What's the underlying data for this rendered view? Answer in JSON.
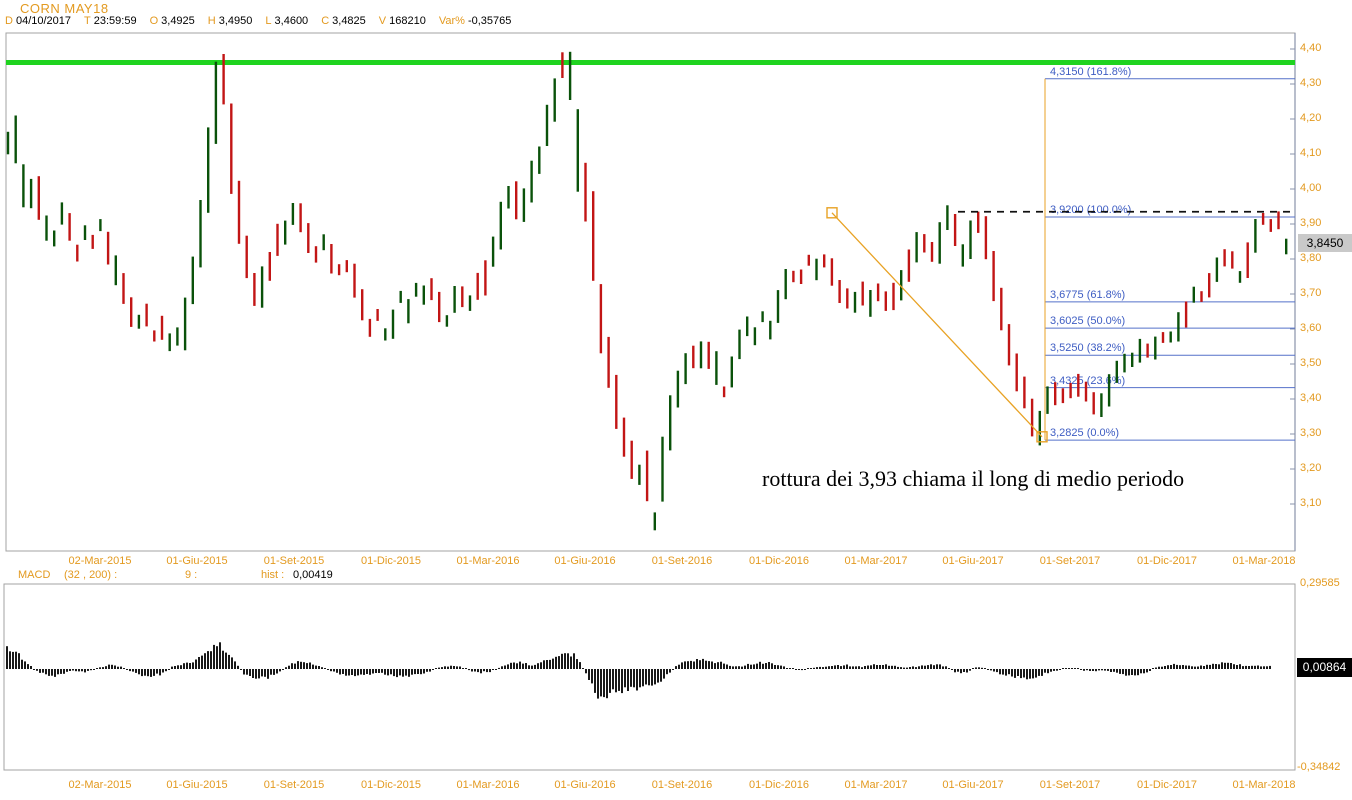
{
  "header": {
    "title": "CORN MAY18",
    "fields": [
      {
        "label": "D",
        "value": "04/10/2017"
      },
      {
        "label": "T",
        "value": "23:59:59"
      },
      {
        "label": "O",
        "value": "3,4925"
      },
      {
        "label": "H",
        "value": "3,4950"
      },
      {
        "label": "L",
        "value": "3,4600"
      },
      {
        "label": "C",
        "value": "3,4825"
      },
      {
        "label": "V",
        "value": "168210"
      },
      {
        "label": "Var%",
        "value": "-0,35765"
      }
    ]
  },
  "annotation": "rottura dei 3,93 chiama il long di medio periodo",
  "price_label": "3,8450",
  "macd": {
    "label": "MACD",
    "params": "(32 , 200) :",
    "signal": "9 :",
    "hist_label": "hist :",
    "hist_value": "0,00419",
    "axis_max_label": "0,29585",
    "axis_min_label": "-0,34842",
    "last_value_label": "0,00864"
  },
  "colors": {
    "accent_orange": "#E39A20",
    "candle_up": "#0A520A",
    "candle_down": "#C21515",
    "fib_blue": "#5571C9",
    "fib_text": "#3E5DC3",
    "green_line": "#1FD31F",
    "histogram": "#000000",
    "border": "#A3A3A3",
    "axis": "#8A93AB",
    "trend_orange": "#E8A224"
  },
  "chart_data": {
    "type": "candlestick",
    "title": "CORN MAY18",
    "x_labels": [
      "02-Mar-2015",
      "01-Giu-2015",
      "01-Set-2015",
      "01-Dic-2015",
      "01-Mar-2016",
      "01-Giu-2016",
      "01-Set-2016",
      "01-Dic-2016",
      "01-Mar-2017",
      "01-Giu-2017",
      "01-Set-2017",
      "01-Dic-2017",
      "01-Mar-2018"
    ],
    "y_ticks": [
      {
        "v": 4.4,
        "label": "4,40"
      },
      {
        "v": 4.3,
        "label": "4,30"
      },
      {
        "v": 4.2,
        "label": "4,20"
      },
      {
        "v": 4.1,
        "label": "4,10"
      },
      {
        "v": 4.0,
        "label": "4,00"
      },
      {
        "v": 3.9,
        "label": "3,90"
      },
      {
        "v": 3.8,
        "label": "3,80"
      },
      {
        "v": 3.7,
        "label": "3,70"
      },
      {
        "v": 3.6,
        "label": "3,60"
      },
      {
        "v": 3.5,
        "label": "3,50"
      },
      {
        "v": 3.4,
        "label": "3,40"
      },
      {
        "v": 3.3,
        "label": "3,30"
      },
      {
        "v": 3.2,
        "label": "3,20"
      },
      {
        "v": 3.1,
        "label": "3,10"
      }
    ],
    "ylim": [
      3.02,
      4.42
    ],
    "green_line_price": 4.3615,
    "dashed_line_price": 3.935,
    "fib_anchor_x": 1045,
    "fib_levels": [
      {
        "price": 4.315,
        "label": "4,3150 (161.8%)"
      },
      {
        "price": 3.92,
        "label": "3,9200 (100.0%)"
      },
      {
        "price": 3.6775,
        "label": "3,6775 (61.8%)"
      },
      {
        "price": 3.6025,
        "label": "3,6025 (50.0%)"
      },
      {
        "price": 3.525,
        "label": "3,5250 (38.2%)"
      },
      {
        "price": 3.4325,
        "label": "3,4325 (23.6%)"
      },
      {
        "price": 3.2825,
        "label": "3,2825 (0.0%)"
      }
    ],
    "trendline": {
      "x1": 832,
      "price1": 3.932,
      "x2": 1042,
      "price2": 3.292
    },
    "price_path": [
      [
        8,
        4.13
      ],
      [
        14,
        4.18
      ],
      [
        20,
        4.05
      ],
      [
        28,
        3.96
      ],
      [
        35,
        4.03
      ],
      [
        45,
        3.9
      ],
      [
        55,
        3.86
      ],
      [
        62,
        3.93
      ],
      [
        70,
        3.88
      ],
      [
        78,
        3.82
      ],
      [
        85,
        3.89
      ],
      [
        95,
        3.84
      ],
      [
        100,
        3.9
      ],
      [
        108,
        3.83
      ],
      [
        115,
        3.78
      ],
      [
        122,
        3.72
      ],
      [
        130,
        3.66
      ],
      [
        138,
        3.6
      ],
      [
        145,
        3.64
      ],
      [
        152,
        3.57
      ],
      [
        160,
        3.61
      ],
      [
        168,
        3.55
      ],
      [
        175,
        3.59
      ],
      [
        182,
        3.56
      ],
      [
        190,
        3.7
      ],
      [
        197,
        3.8
      ],
      [
        205,
        3.96
      ],
      [
        212,
        4.15
      ],
      [
        219,
        4.32
      ],
      [
        222,
        4.37
      ],
      [
        228,
        4.2
      ],
      [
        235,
        4.0
      ],
      [
        242,
        3.86
      ],
      [
        250,
        3.76
      ],
      [
        258,
        3.68
      ],
      [
        265,
        3.76
      ],
      [
        272,
        3.81
      ],
      [
        280,
        3.86
      ],
      [
        288,
        3.89
      ],
      [
        295,
        3.94
      ],
      [
        302,
        3.9
      ],
      [
        310,
        3.85
      ],
      [
        318,
        3.8
      ],
      [
        325,
        3.86
      ],
      [
        332,
        3.8
      ],
      [
        340,
        3.76
      ],
      [
        348,
        3.79
      ],
      [
        355,
        3.72
      ],
      [
        362,
        3.66
      ],
      [
        370,
        3.6
      ],
      [
        378,
        3.64
      ],
      [
        385,
        3.58
      ],
      [
        392,
        3.62
      ],
      [
        400,
        3.68
      ],
      [
        408,
        3.65
      ],
      [
        415,
        3.71
      ],
      [
        422,
        3.68
      ],
      [
        430,
        3.73
      ],
      [
        438,
        3.67
      ],
      [
        445,
        3.62
      ],
      [
        452,
        3.66
      ],
      [
        460,
        3.71
      ],
      [
        468,
        3.65
      ],
      [
        475,
        3.69
      ],
      [
        482,
        3.73
      ],
      [
        490,
        3.79
      ],
      [
        498,
        3.86
      ],
      [
        505,
        3.96
      ],
      [
        512,
        4.01
      ],
      [
        520,
        3.93
      ],
      [
        528,
        3.99
      ],
      [
        535,
        4.06
      ],
      [
        542,
        4.11
      ],
      [
        550,
        4.21
      ],
      [
        558,
        4.31
      ],
      [
        565,
        4.38
      ],
      [
        572,
        4.31
      ],
      [
        578,
        4.11
      ],
      [
        585,
        4.01
      ],
      [
        592,
        3.9
      ],
      [
        598,
        3.7
      ],
      [
        605,
        3.56
      ],
      [
        612,
        3.46
      ],
      [
        618,
        3.36
      ],
      [
        625,
        3.29
      ],
      [
        632,
        3.21
      ],
      [
        638,
        3.16
      ],
      [
        645,
        3.23
      ],
      [
        650,
        3.11
      ],
      [
        655,
        3.04
      ],
      [
        660,
        3.16
      ],
      [
        668,
        3.3
      ],
      [
        675,
        3.41
      ],
      [
        682,
        3.46
      ],
      [
        690,
        3.53
      ],
      [
        698,
        3.49
      ],
      [
        705,
        3.56
      ],
      [
        712,
        3.51
      ],
      [
        718,
        3.46
      ],
      [
        725,
        3.43
      ],
      [
        732,
        3.49
      ],
      [
        740,
        3.56
      ],
      [
        748,
        3.61
      ],
      [
        755,
        3.59
      ],
      [
        762,
        3.63
      ],
      [
        770,
        3.59
      ],
      [
        778,
        3.66
      ],
      [
        785,
        3.71
      ],
      [
        792,
        3.76
      ],
      [
        800,
        3.73
      ],
      [
        808,
        3.79
      ],
      [
        815,
        3.76
      ],
      [
        822,
        3.81
      ],
      [
        830,
        3.79
      ],
      [
        838,
        3.73
      ],
      [
        845,
        3.69
      ],
      [
        852,
        3.66
      ],
      [
        860,
        3.71
      ],
      [
        868,
        3.66
      ],
      [
        875,
        3.73
      ],
      [
        882,
        3.69
      ],
      [
        890,
        3.66
      ],
      [
        898,
        3.71
      ],
      [
        905,
        3.76
      ],
      [
        912,
        3.81
      ],
      [
        920,
        3.86
      ],
      [
        928,
        3.83
      ],
      [
        935,
        3.79
      ],
      [
        942,
        3.86
      ],
      [
        950,
        3.93
      ],
      [
        958,
        3.86
      ],
      [
        965,
        3.79
      ],
      [
        972,
        3.86
      ],
      [
        978,
        3.91
      ],
      [
        985,
        3.89
      ],
      [
        992,
        3.76
      ],
      [
        1000,
        3.66
      ],
      [
        1008,
        3.56
      ],
      [
        1015,
        3.49
      ],
      [
        1022,
        3.43
      ],
      [
        1030,
        3.36
      ],
      [
        1037,
        3.29
      ],
      [
        1045,
        3.38
      ],
      [
        1052,
        3.43
      ],
      [
        1060,
        3.39
      ],
      [
        1068,
        3.43
      ],
      [
        1075,
        3.41
      ],
      [
        1082,
        3.45
      ],
      [
        1090,
        3.41
      ],
      [
        1098,
        3.37
      ],
      [
        1105,
        3.41
      ],
      [
        1112,
        3.45
      ],
      [
        1120,
        3.49
      ],
      [
        1128,
        3.53
      ],
      [
        1135,
        3.51
      ],
      [
        1142,
        3.55
      ],
      [
        1150,
        3.53
      ],
      [
        1158,
        3.56
      ],
      [
        1165,
        3.59
      ],
      [
        1172,
        3.56
      ],
      [
        1180,
        3.61
      ],
      [
        1188,
        3.66
      ],
      [
        1195,
        3.71
      ],
      [
        1202,
        3.69
      ],
      [
        1210,
        3.73
      ],
      [
        1218,
        3.77
      ],
      [
        1225,
        3.81
      ],
      [
        1232,
        3.79
      ],
      [
        1240,
        3.75
      ],
      [
        1248,
        3.81
      ],
      [
        1255,
        3.87
      ],
      [
        1262,
        3.92
      ],
      [
        1270,
        3.88
      ],
      [
        1278,
        3.9
      ],
      [
        1285,
        3.85
      ]
    ],
    "macd_chart": {
      "type": "histogram",
      "ylim": [
        -0.34842,
        0.29585
      ],
      "hist_path": [
        [
          4,
          0.075
        ],
        [
          12,
          0.068
        ],
        [
          18,
          0.05
        ],
        [
          25,
          0.025
        ],
        [
          32,
          0.005
        ],
        [
          40,
          -0.012
        ],
        [
          50,
          -0.026
        ],
        [
          60,
          -0.02
        ],
        [
          70,
          -0.006
        ],
        [
          85,
          -0.01
        ],
        [
          100,
          0.006
        ],
        [
          110,
          0.016
        ],
        [
          120,
          0.01
        ],
        [
          133,
          -0.012
        ],
        [
          145,
          -0.026
        ],
        [
          160,
          -0.02
        ],
        [
          172,
          0.006
        ],
        [
          182,
          0.018
        ],
        [
          192,
          0.024
        ],
        [
          200,
          0.042
        ],
        [
          210,
          0.072
        ],
        [
          218,
          0.088
        ],
        [
          228,
          0.06
        ],
        [
          238,
          0.012
        ],
        [
          245,
          -0.02
        ],
        [
          255,
          -0.034
        ],
        [
          268,
          -0.03
        ],
        [
          278,
          -0.012
        ],
        [
          290,
          0.014
        ],
        [
          300,
          0.026
        ],
        [
          310,
          0.02
        ],
        [
          322,
          0.005
        ],
        [
          335,
          -0.012
        ],
        [
          350,
          -0.024
        ],
        [
          365,
          -0.02
        ],
        [
          378,
          -0.013
        ],
        [
          390,
          -0.02
        ],
        [
          400,
          -0.026
        ],
        [
          415,
          -0.022
        ],
        [
          428,
          -0.01
        ],
        [
          440,
          0.006
        ],
        [
          450,
          0.012
        ],
        [
          460,
          0.008
        ],
        [
          470,
          -0.006
        ],
        [
          480,
          -0.013
        ],
        [
          490,
          -0.008
        ],
        [
          500,
          0.006
        ],
        [
          512,
          0.02
        ],
        [
          522,
          0.022
        ],
        [
          532,
          0.012
        ],
        [
          545,
          0.028
        ],
        [
          558,
          0.052
        ],
        [
          568,
          0.062
        ],
        [
          575,
          0.046
        ],
        [
          582,
          0.01
        ],
        [
          590,
          -0.044
        ],
        [
          598,
          -0.092
        ],
        [
          608,
          -0.088
        ],
        [
          620,
          -0.072
        ],
        [
          632,
          -0.066
        ],
        [
          645,
          -0.06
        ],
        [
          655,
          -0.05
        ],
        [
          662,
          -0.036
        ],
        [
          668,
          -0.02
        ],
        [
          676,
          0.012
        ],
        [
          690,
          0.032
        ],
        [
          700,
          0.036
        ],
        [
          710,
          0.03
        ],
        [
          722,
          0.02
        ],
        [
          735,
          0.008
        ],
        [
          745,
          0.013
        ],
        [
          755,
          0.021
        ],
        [
          768,
          0.023
        ],
        [
          780,
          0.012
        ],
        [
          790,
          0.002
        ],
        [
          800,
          -0.004
        ],
        [
          815,
          0.005
        ],
        [
          830,
          0.011
        ],
        [
          845,
          0.013
        ],
        [
          860,
          0.008
        ],
        [
          875,
          0.016
        ],
        [
          890,
          0.012
        ],
        [
          905,
          0.005
        ],
        [
          920,
          0.009
        ],
        [
          935,
          0.016
        ],
        [
          945,
          0.012
        ],
        [
          955,
          -0.009
        ],
        [
          962,
          -0.016
        ],
        [
          970,
          -0.006
        ],
        [
          978,
          0.009
        ],
        [
          985,
          0.003
        ],
        [
          995,
          -0.011
        ],
        [
          1005,
          -0.019
        ],
        [
          1015,
          -0.026
        ],
        [
          1030,
          -0.036
        ],
        [
          1042,
          -0.021
        ],
        [
          1052,
          -0.009
        ],
        [
          1065,
          0.004
        ],
        [
          1075,
          0.002
        ],
        [
          1085,
          -0.005
        ],
        [
          1095,
          -0.007
        ],
        [
          1105,
          -0.005
        ],
        [
          1115,
          -0.013
        ],
        [
          1125,
          -0.021
        ],
        [
          1135,
          -0.023
        ],
        [
          1145,
          -0.016
        ],
        [
          1155,
          0.005
        ],
        [
          1165,
          0.012
        ],
        [
          1175,
          0.016
        ],
        [
          1185,
          0.012
        ],
        [
          1195,
          0.008
        ],
        [
          1205,
          0.012
        ],
        [
          1215,
          0.018
        ],
        [
          1225,
          0.021
        ],
        [
          1235,
          0.016
        ],
        [
          1245,
          0.011
        ],
        [
          1255,
          0.013
        ],
        [
          1262,
          0.01
        ],
        [
          1270,
          0.009
        ]
      ]
    }
  }
}
